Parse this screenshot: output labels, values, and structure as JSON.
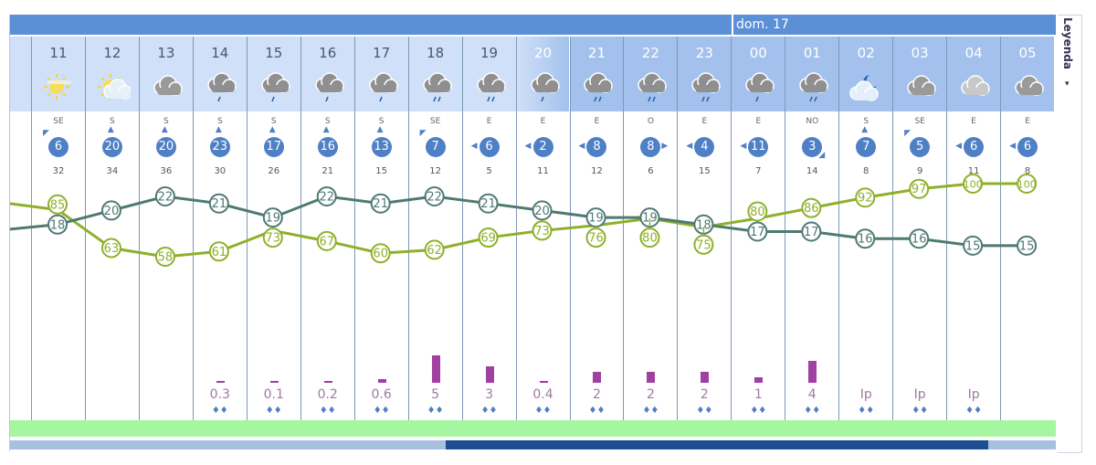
{
  "header": {
    "day_label": "dom. 17"
  },
  "legend": {
    "label": "Leyenda",
    "arrow": "▾"
  },
  "colors": {
    "header_bar": "#5b8fd6",
    "temperature": "#4e7a72",
    "humidity": "#8fb02a",
    "precip": "#a040a0",
    "wind_badge": "#4f7fc4",
    "green_band": "#a6f5a0",
    "scroll_thumb": "#1d4e8f"
  },
  "hours": [
    {
      "hour": "11",
      "icon": "sun-haze",
      "wind_dir": "SE",
      "wind": "6",
      "gust": "32",
      "temp": 18,
      "temp_label": "18",
      "hum": 85,
      "hum_label": "85",
      "precip": "",
      "precip_mm": 0,
      "drops": false,
      "night": false
    },
    {
      "hour": "12",
      "icon": "sun-cloud",
      "wind_dir": "S",
      "wind": "20",
      "gust": "34",
      "temp": 20,
      "temp_label": "20",
      "hum": 63,
      "hum_label": "63",
      "precip": "",
      "precip_mm": 0,
      "drops": false,
      "night": false
    },
    {
      "hour": "13",
      "icon": "cloud",
      "wind_dir": "S",
      "wind": "20",
      "gust": "36",
      "temp": 22,
      "temp_label": "22",
      "hum": 58,
      "hum_label": "58",
      "precip": "",
      "precip_mm": 0,
      "drops": false,
      "night": false
    },
    {
      "hour": "14",
      "icon": "cloud-rain",
      "wind_dir": "S",
      "wind": "23",
      "gust": "30",
      "temp": 21,
      "temp_label": "21",
      "hum": 61,
      "hum_label": "61",
      "precip": "0.3",
      "precip_mm": 0.3,
      "drops": true,
      "night": false
    },
    {
      "hour": "15",
      "icon": "cloud-rain",
      "wind_dir": "S",
      "wind": "17",
      "gust": "26",
      "temp": 19,
      "temp_label": "19",
      "hum": 73,
      "hum_label": "73",
      "precip": "0.1",
      "precip_mm": 0.1,
      "drops": true,
      "night": false
    },
    {
      "hour": "16",
      "icon": "cloud-rain",
      "wind_dir": "S",
      "wind": "16",
      "gust": "21",
      "temp": 22,
      "temp_label": "22",
      "hum": 67,
      "hum_label": "67",
      "precip": "0.2",
      "precip_mm": 0.2,
      "drops": true,
      "night": false
    },
    {
      "hour": "17",
      "icon": "cloud-rain",
      "wind_dir": "S",
      "wind": "13",
      "gust": "15",
      "temp": 21,
      "temp_label": "21",
      "hum": 60,
      "hum_label": "60",
      "precip": "0.6",
      "precip_mm": 0.6,
      "drops": true,
      "night": false
    },
    {
      "hour": "18",
      "icon": "heavy-rain",
      "wind_dir": "SE",
      "wind": "7",
      "gust": "12",
      "temp": 22,
      "temp_label": "22",
      "hum": 62,
      "hum_label": "62",
      "precip": "5",
      "precip_mm": 5,
      "drops": true,
      "night": false
    },
    {
      "hour": "19",
      "icon": "heavy-rain",
      "wind_dir": "E",
      "wind": "6",
      "gust": "5",
      "temp": 21,
      "temp_label": "21",
      "hum": 69,
      "hum_label": "69",
      "precip": "3",
      "precip_mm": 3,
      "drops": true,
      "night": false
    },
    {
      "hour": "20",
      "icon": "cloud-rain",
      "wind_dir": "E",
      "wind": "2",
      "gust": "11",
      "temp": 20,
      "temp_label": "20",
      "hum": 73,
      "hum_label": "73",
      "precip": "0.4",
      "precip_mm": 0.4,
      "drops": true,
      "night": "trans"
    },
    {
      "hour": "21",
      "icon": "heavy-rain",
      "wind_dir": "E",
      "wind": "8",
      "gust": "12",
      "temp": 19,
      "temp_label": "19",
      "hum": 76,
      "hum_label": "76",
      "precip": "2",
      "precip_mm": 2,
      "drops": true,
      "night": true
    },
    {
      "hour": "22",
      "icon": "heavy-rain",
      "wind_dir": "O",
      "wind": "8",
      "gust": "6",
      "temp": 19,
      "temp_label": "19",
      "hum": 80,
      "hum_label": "80",
      "precip": "2",
      "precip_mm": 2,
      "drops": true,
      "night": true
    },
    {
      "hour": "23",
      "icon": "heavy-rain",
      "wind_dir": "E",
      "wind": "4",
      "gust": "15",
      "temp": 18,
      "temp_label": "18",
      "hum": 75,
      "hum_label": "75",
      "precip": "2",
      "precip_mm": 2,
      "drops": true,
      "night": true
    },
    {
      "hour": "00",
      "icon": "cloud-rain",
      "wind_dir": "E",
      "wind": "11",
      "gust": "7",
      "temp": 17,
      "temp_label": "17",
      "hum": 80,
      "hum_label": "80",
      "precip": "1",
      "precip_mm": 1,
      "drops": true,
      "night": true
    },
    {
      "hour": "01",
      "icon": "heavy-rain",
      "wind_dir": "NO",
      "wind": "3",
      "gust": "14",
      "temp": 17,
      "temp_label": "17",
      "hum": 86,
      "hum_label": "86",
      "precip": "4",
      "precip_mm": 4,
      "drops": true,
      "night": true
    },
    {
      "hour": "02",
      "icon": "moon-cloud",
      "wind_dir": "S",
      "wind": "7",
      "gust": "8",
      "temp": 16,
      "temp_label": "16",
      "hum": 92,
      "hum_label": "92",
      "precip": "Ip",
      "precip_mm": 0,
      "drops": true,
      "night": true
    },
    {
      "hour": "03",
      "icon": "cloud",
      "wind_dir": "SE",
      "wind": "5",
      "gust": "9",
      "temp": 16,
      "temp_label": "16",
      "hum": 97,
      "hum_label": "97",
      "precip": "Ip",
      "precip_mm": 0,
      "drops": true,
      "night": true
    },
    {
      "hour": "04",
      "icon": "cloud-light",
      "wind_dir": "E",
      "wind": "6",
      "gust": "11",
      "temp": 15,
      "temp_label": "15",
      "hum": 100,
      "hum_label": "100",
      "precip": "Ip",
      "precip_mm": 0,
      "drops": true,
      "night": true
    },
    {
      "hour": "05",
      "icon": "cloud",
      "wind_dir": "E",
      "wind": "6",
      "gust": "8",
      "temp": 15,
      "temp_label": "15",
      "hum": 100,
      "hum_label": "100",
      "precip": "",
      "precip_mm": 0,
      "drops": false,
      "night": true
    }
  ]
}
